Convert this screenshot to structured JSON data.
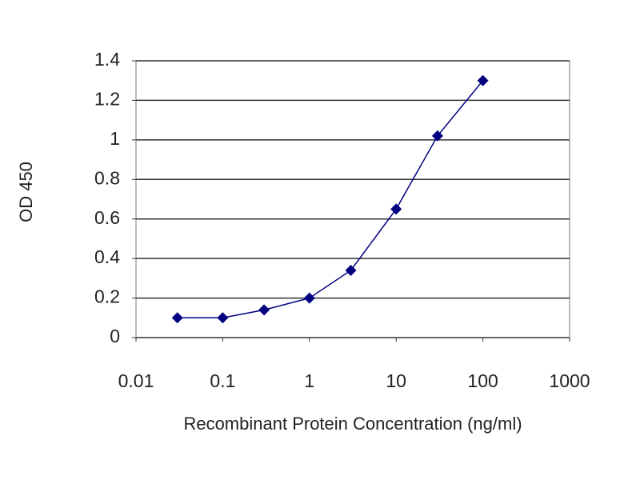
{
  "chart_data": {
    "type": "line",
    "x_label": "Recombinant Protein Concentration (ng/ml)",
    "y_label": "OD 450",
    "x": [
      0.03,
      0.1,
      0.3,
      1,
      3,
      10,
      30,
      100
    ],
    "values": [
      0.1,
      0.1,
      0.14,
      0.2,
      0.34,
      0.65,
      1.02,
      1.3
    ],
    "color": "#000080",
    "x_scale": "log",
    "xlim": [
      0.01,
      1000
    ],
    "xticks": [
      0.01,
      0.1,
      1,
      10,
      100,
      1000
    ],
    "ylim": [
      0,
      1.4
    ],
    "yticks": [
      0,
      0.2,
      0.4,
      0.6,
      0.8,
      1,
      1.2,
      1.4
    ],
    "grid": true
  }
}
